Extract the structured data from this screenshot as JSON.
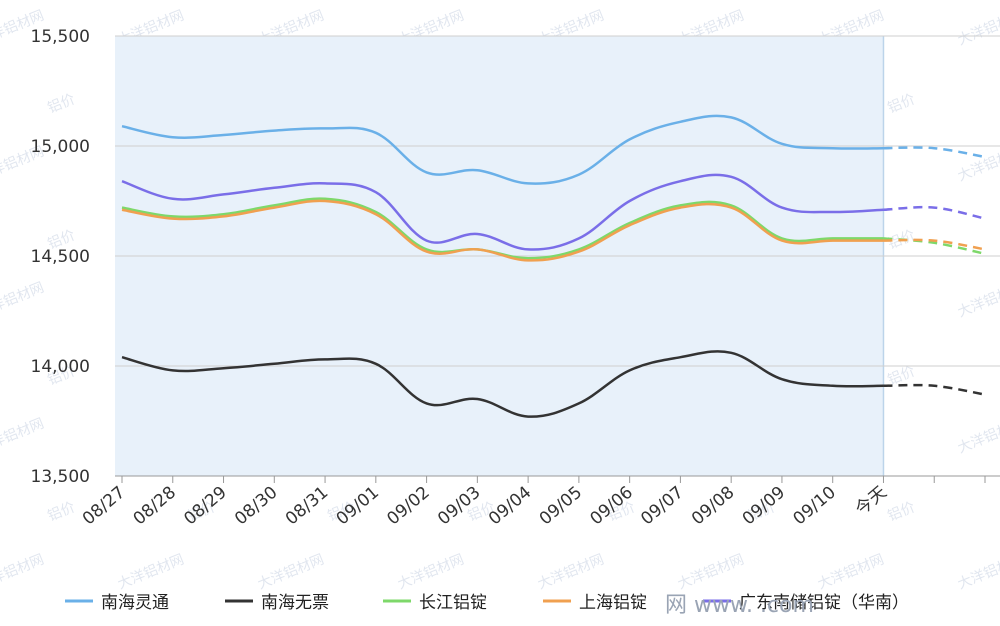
{
  "chart_data": {
    "type": "line",
    "x": [
      "08/27",
      "08/28",
      "08/29",
      "08/30",
      "08/31",
      "09/01",
      "09/02",
      "09/03",
      "09/04",
      "09/05",
      "09/06",
      "09/07",
      "09/08",
      "09/09",
      "09/10",
      "今天",
      "",
      ""
    ],
    "today_index": 15,
    "ylim": [
      13500,
      15500
    ],
    "yticks": [
      "13,500",
      "14,000",
      "14,500",
      "15,000",
      "15,500"
    ],
    "ytick_values": [
      13500,
      14000,
      14500,
      15000,
      15500
    ],
    "grid": true,
    "legend_position": "bottom",
    "series": [
      {
        "name": "南海灵通",
        "color": "#6ab0e8",
        "values": [
          15090,
          15040,
          15050,
          15070,
          15080,
          15060,
          14880,
          14890,
          14830,
          14870,
          15030,
          15110,
          15130,
          15010,
          14990,
          14990,
          14990,
          14950
        ]
      },
      {
        "name": "南海无票",
        "color": "#333333",
        "values": [
          14040,
          13980,
          13990,
          14010,
          14030,
          14010,
          13830,
          13850,
          13770,
          13830,
          13980,
          14040,
          14060,
          13940,
          13910,
          13910,
          13910,
          13870
        ]
      },
      {
        "name": "长江铝锭",
        "color": "#7ed86a",
        "values": [
          14720,
          14680,
          14690,
          14730,
          14760,
          14700,
          14530,
          14530,
          14490,
          14530,
          14650,
          14730,
          14730,
          14580,
          14580,
          14580,
          14560,
          14510
        ]
      },
      {
        "name": "上海铝锭",
        "color": "#f0a050",
        "values": [
          14710,
          14670,
          14680,
          14720,
          14750,
          14690,
          14520,
          14530,
          14480,
          14520,
          14640,
          14720,
          14720,
          14570,
          14570,
          14570,
          14570,
          14530
        ]
      },
      {
        "name": "广东南储铝锭（华南）",
        "color": "#7a6ee8",
        "values": [
          14840,
          14760,
          14780,
          14810,
          14830,
          14790,
          14570,
          14600,
          14530,
          14580,
          14750,
          14840,
          14860,
          14720,
          14700,
          14710,
          14720,
          14670
        ]
      }
    ],
    "watermark_texts": [
      "大洋铝材网",
      "铝价"
    ]
  },
  "site_mark": "网 www.   .com"
}
